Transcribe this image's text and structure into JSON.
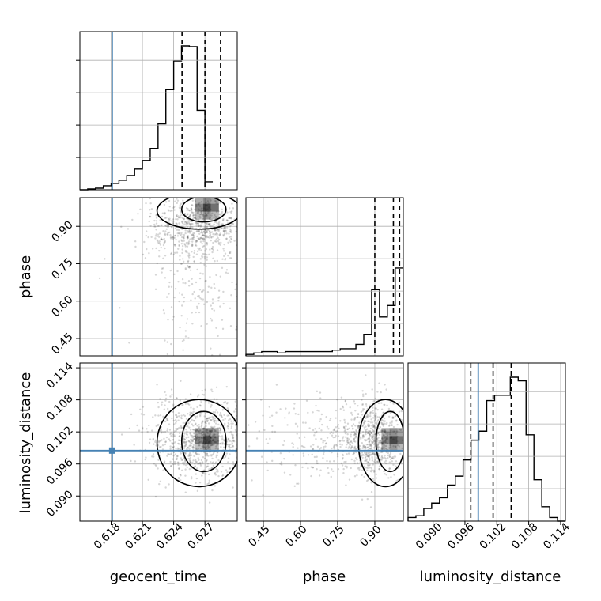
{
  "chart_data": {
    "type": "corner",
    "parameters": [
      "geocent_time",
      "phase",
      "luminosity_distance"
    ],
    "truths": {
      "geocent_time": 0.6181,
      "luminosity_distance": 0.0985,
      "color": "#4682b4"
    },
    "ranges": {
      "geocent_time": [
        0.615,
        0.6301
      ],
      "phase": [
        0.38,
        1.015
      ],
      "luminosity_distance": [
        0.0853,
        0.1149
      ]
    },
    "ticks": {
      "geocent_time": {
        "values": [
          0.618,
          0.621,
          0.624,
          0.627
        ],
        "labels": [
          "0.618",
          "0.621",
          "0.624",
          "0.627"
        ]
      },
      "phase": {
        "values": [
          0.45,
          0.6,
          0.75,
          0.9
        ],
        "labels": [
          "0.45",
          "0.60",
          "0.75",
          "0.90"
        ]
      },
      "luminosity_distance": {
        "values": [
          0.09,
          0.096,
          0.102,
          0.108,
          0.114
        ],
        "labels": [
          "0.090",
          "0.096",
          "0.102",
          "0.108",
          "0.114"
        ]
      }
    },
    "quantiles": {
      "geocent_time": [
        0.6248,
        0.627,
        0.6285
      ],
      "phase": [
        0.9,
        0.975,
        1.0
      ],
      "luminosity_distance": [
        0.0971,
        0.1013,
        0.1047
      ]
    },
    "histograms": {
      "geocent_time": {
        "edges_start": 0.615,
        "bin_width": 0.00075,
        "counts": [
          0,
          1,
          2,
          5,
          8,
          12,
          18,
          26,
          37,
          52,
          83,
          126,
          162,
          181,
          180,
          100,
          10
        ]
      },
      "phase": {
        "edges_start": 0.38,
        "bin_width": 0.0317,
        "counts": [
          1,
          2,
          3,
          3,
          2,
          3,
          3,
          3,
          3,
          3,
          3,
          4,
          5,
          5,
          8,
          15,
          46,
          27,
          35,
          61,
          100
        ]
      },
      "luminosity_distance": {
        "edges_start": 0.0853,
        "bin_width": 0.00148,
        "counts": [
          2,
          3,
          7,
          10,
          13,
          20,
          25,
          34,
          45,
          50,
          67,
          70,
          70,
          80,
          78,
          48,
          23,
          8,
          2,
          0
        ]
      }
    },
    "grid": true,
    "xlabel_bottom": [
      "geocent_time",
      "phase",
      "luminosity_distance"
    ],
    "ylabel_left": [
      "phase",
      "luminosity_distance"
    ]
  }
}
